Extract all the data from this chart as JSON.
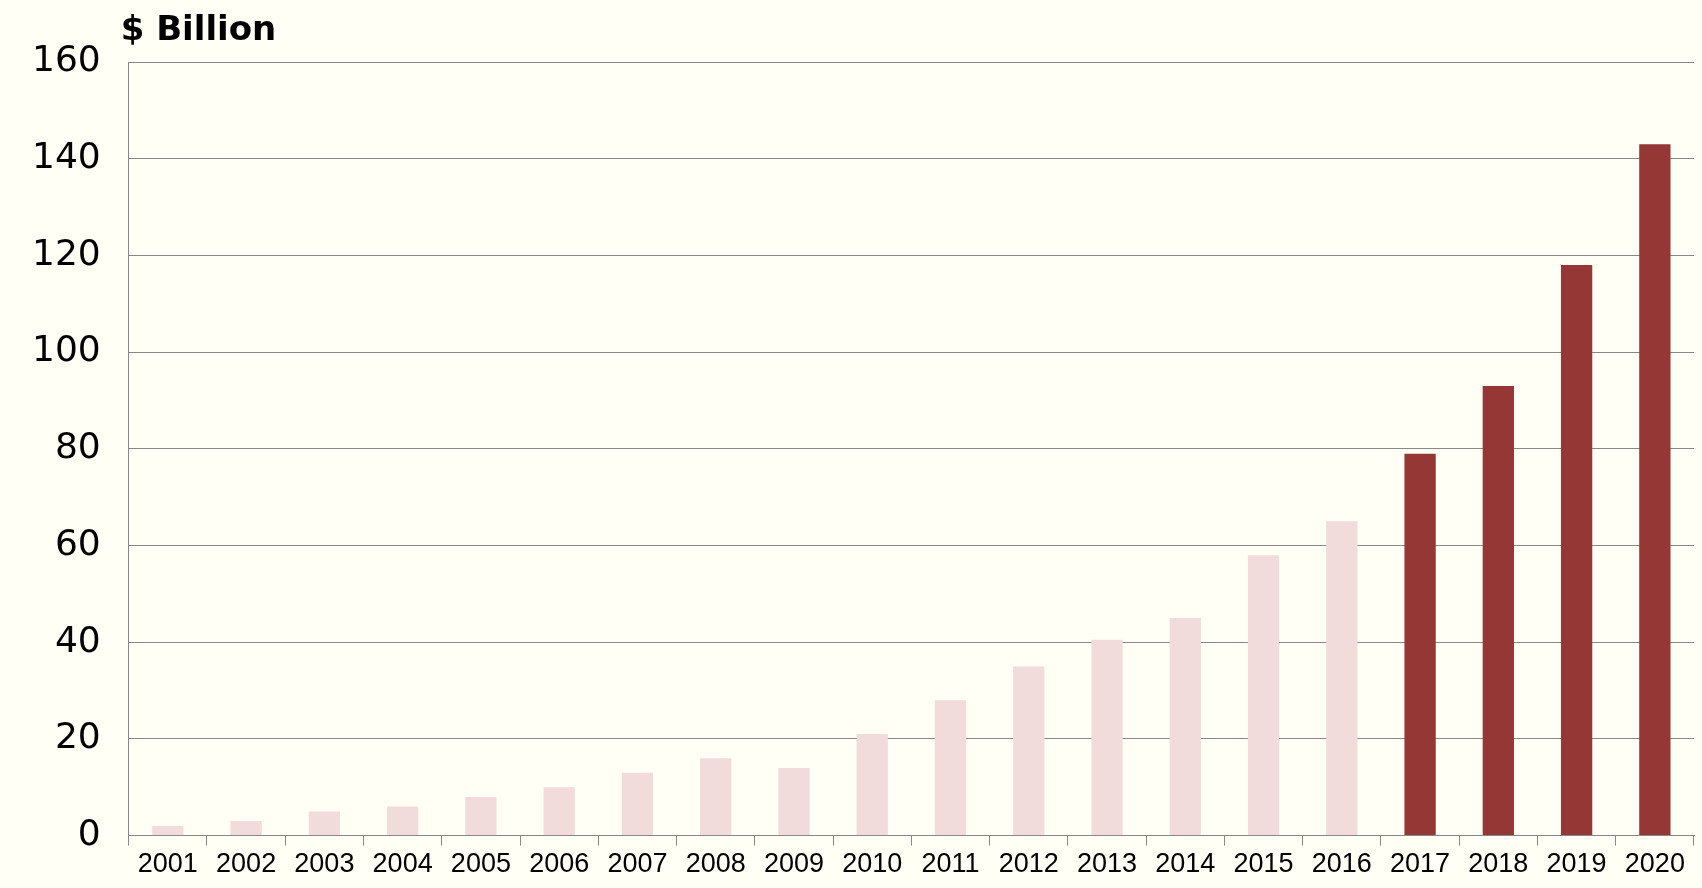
{
  "chart_data": {
    "type": "bar",
    "ylabel": "$ Billion",
    "categories": [
      "2001",
      "2002",
      "2003",
      "2004",
      "2005",
      "2006",
      "2007",
      "2008",
      "2009",
      "2010",
      "2011",
      "2012",
      "2013",
      "2014",
      "2015",
      "2016",
      "2017",
      "2018",
      "2019",
      "2020"
    ],
    "values": [
      2,
      3,
      5,
      6,
      8,
      10,
      13,
      16,
      14,
      21,
      28,
      35,
      40.5,
      45,
      58,
      65,
      79,
      93,
      118,
      143
    ],
    "colors": [
      "#f2dcdb",
      "#f2dcdb",
      "#f2dcdb",
      "#f2dcdb",
      "#f2dcdb",
      "#f2dcdb",
      "#f2dcdb",
      "#f2dcdb",
      "#f2dcdb",
      "#f2dcdb",
      "#f2dcdb",
      "#f2dcdb",
      "#f2dcdb",
      "#f2dcdb",
      "#f2dcdb",
      "#f2dcdb",
      "#953735",
      "#953735",
      "#953735",
      "#953735"
    ],
    "ylim": [
      0,
      160
    ],
    "yticks": [
      0,
      20,
      40,
      60,
      80,
      100,
      120,
      140,
      160
    ],
    "grid": "y"
  }
}
